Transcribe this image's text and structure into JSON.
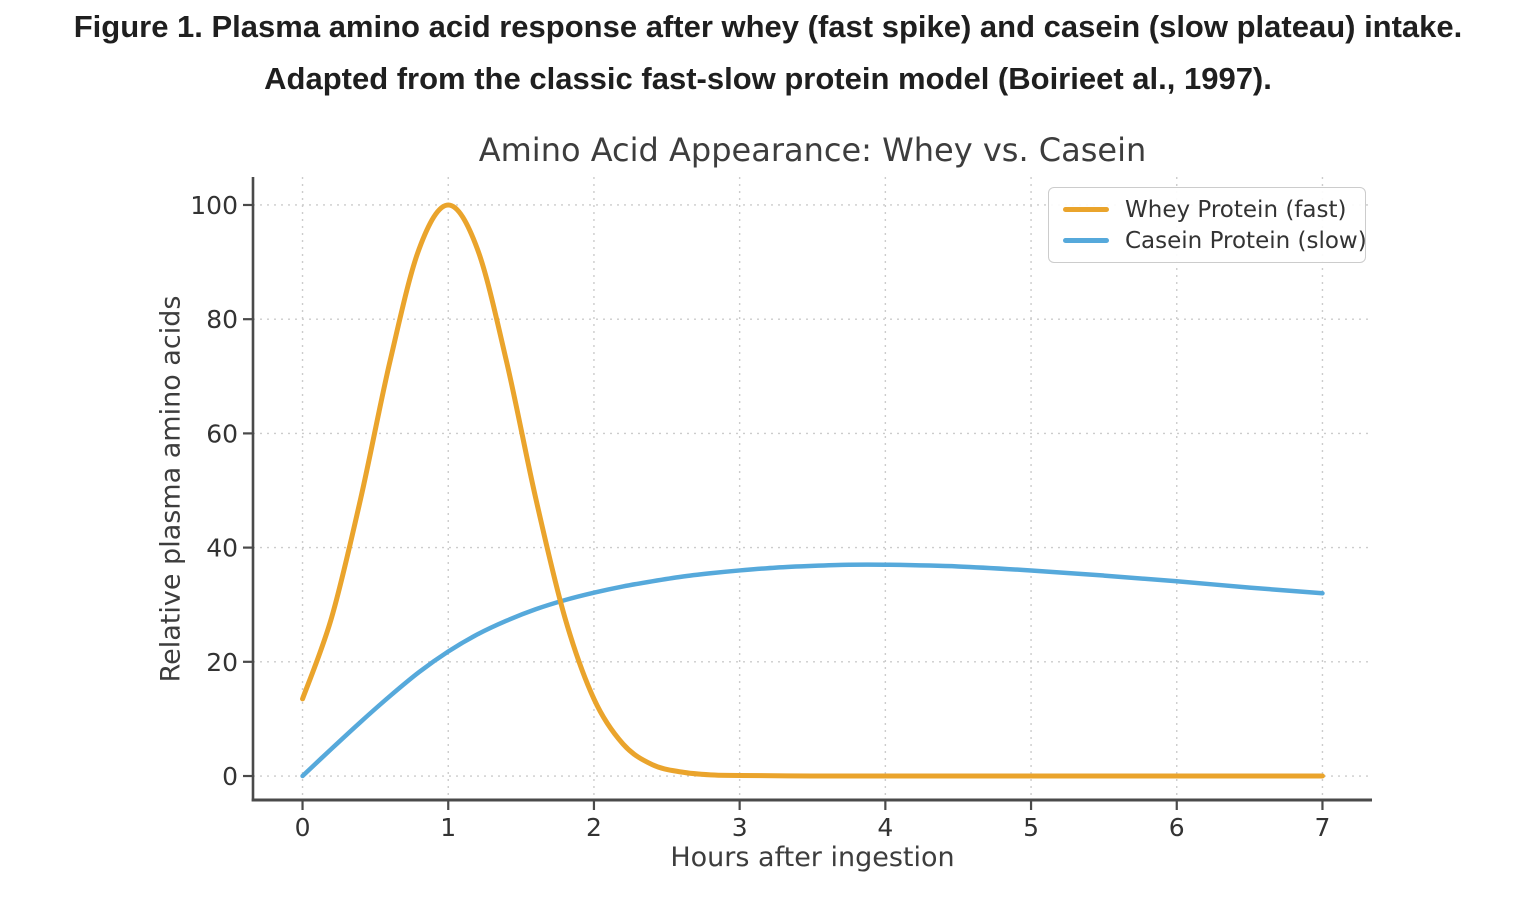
{
  "caption": {
    "line1": "Figure 1. Plasma amino acid response after whey (fast spike) and casein (slow plateau) intake.",
    "line2": "Adapted from the classic fast-slow protein model (Boirieet al., 1997)."
  },
  "chart_data": {
    "type": "line",
    "title": "Amino Acid Appearance: Whey vs. Casein",
    "xlabel": "Hours after ingestion",
    "ylabel": "Relative plasma amino acids",
    "xlim": [
      -0.34,
      7.34
    ],
    "ylim": [
      -4.2,
      104.9
    ],
    "xticks": [
      0,
      1,
      2,
      3,
      4,
      5,
      6,
      7
    ],
    "yticks": [
      0,
      20,
      40,
      60,
      80,
      100
    ],
    "grid": true,
    "grid_style": "dotted",
    "legend_position": "upper right",
    "series": [
      {
        "name": "Whey Protein (fast)",
        "color": "#EAA42C",
        "x": [
          0,
          0.2,
          0.4,
          0.6,
          0.8,
          1.0,
          1.2,
          1.4,
          1.6,
          1.8,
          2.0,
          2.2,
          2.4,
          2.6,
          2.8,
          3.0,
          3.5,
          4.0,
          4.5,
          5.0,
          5.5,
          6.0,
          6.5,
          7.0
        ],
        "y": [
          13.5,
          27.8,
          48.7,
          72.6,
          92.3,
          100,
          92.3,
          72.6,
          48.7,
          27.8,
          13.5,
          5.6,
          2.0,
          0.7,
          0.2,
          0.1,
          0,
          0,
          0,
          0,
          0,
          0,
          0,
          0
        ]
      },
      {
        "name": "Casein Protein (slow)",
        "color": "#56A9DB",
        "x": [
          0,
          0.2,
          0.4,
          0.6,
          0.8,
          1.0,
          1.2,
          1.4,
          1.6,
          1.8,
          2.0,
          2.2,
          2.4,
          2.6,
          2.8,
          3.0,
          3.25,
          3.5,
          3.75,
          4.0,
          4.5,
          5.0,
          5.5,
          6.0,
          6.5,
          7.0
        ],
        "y": [
          0,
          4.8,
          9.5,
          14.0,
          18.2,
          21.8,
          24.8,
          27.2,
          29.2,
          30.8,
          32.1,
          33.2,
          34.1,
          34.9,
          35.5,
          36.0,
          36.5,
          36.8,
          37.0,
          37.0,
          36.7,
          36.0,
          35.1,
          34.1,
          33.0,
          32.0
        ]
      }
    ]
  },
  "styles": {
    "background": "#ffffff",
    "caption_color": "#1f1f1f",
    "title_color": "#3d3d3d",
    "axis_label_color": "#3d3d3d",
    "tick_label_color": "#333333",
    "spine_color": "#4a4a4a",
    "grid_color": "#cccccc",
    "legend_border_color": "#cccccc",
    "legend_text_color": "#333333"
  }
}
